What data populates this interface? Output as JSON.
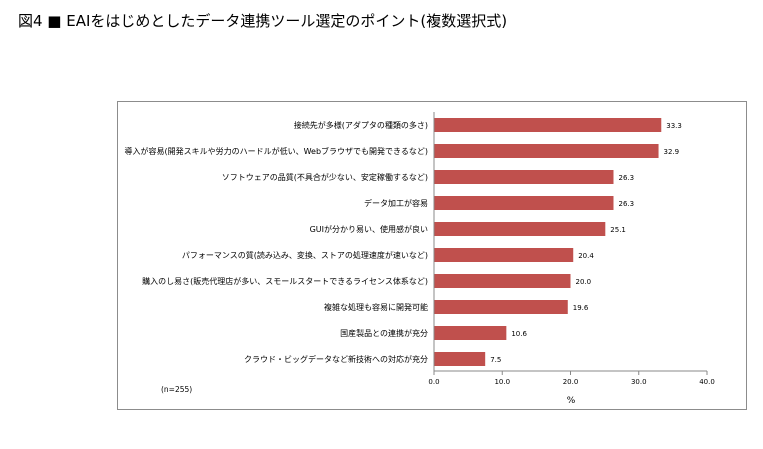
{
  "figure_title": "図4 ■ EAIをはじめとしたデータ連携ツール選定のポイント(複数選択式)",
  "chart_data": {
    "type": "bar",
    "orientation": "horizontal",
    "categories": [
      "接続先が多様(アダプタの種類の多さ)",
      "導入が容易(開発スキルや労力のハードルが低い、Webブラウザでも開発できるなど)",
      "ソフトウェアの品質(不具合が少ない、安定稼働するなど)",
      "データ加工が容易",
      "GUIが分かり易い、使用感が良い",
      "パフォーマンスの質(読み込み、変換、ストアの処理速度が速いなど)",
      "購入のし易さ(販売代理店が多い、スモールスタートできるライセンス体系など)",
      "複雑な処理も容易に開発可能",
      "国産製品との連携が充分",
      "クラウド・ビッグデータなど新技術への対応が充分"
    ],
    "values": [
      33.3,
      32.9,
      26.3,
      26.3,
      25.1,
      20.4,
      20.0,
      19.6,
      10.6,
      7.5
    ],
    "value_labels": [
      "33.3",
      "32.9",
      "26.3",
      "26.3",
      "25.1",
      "20.4",
      "20.0",
      "19.6",
      "10.6",
      "7.5"
    ],
    "xlim": [
      0,
      40
    ],
    "xticks": [
      "0.0",
      "10.0",
      "20.0",
      "30.0",
      "40.0"
    ],
    "xtick_values": [
      0,
      10,
      20,
      30,
      40
    ],
    "xlabel": "%",
    "note": "(n=255)",
    "bar_color": "#c0504d",
    "grid": false
  }
}
